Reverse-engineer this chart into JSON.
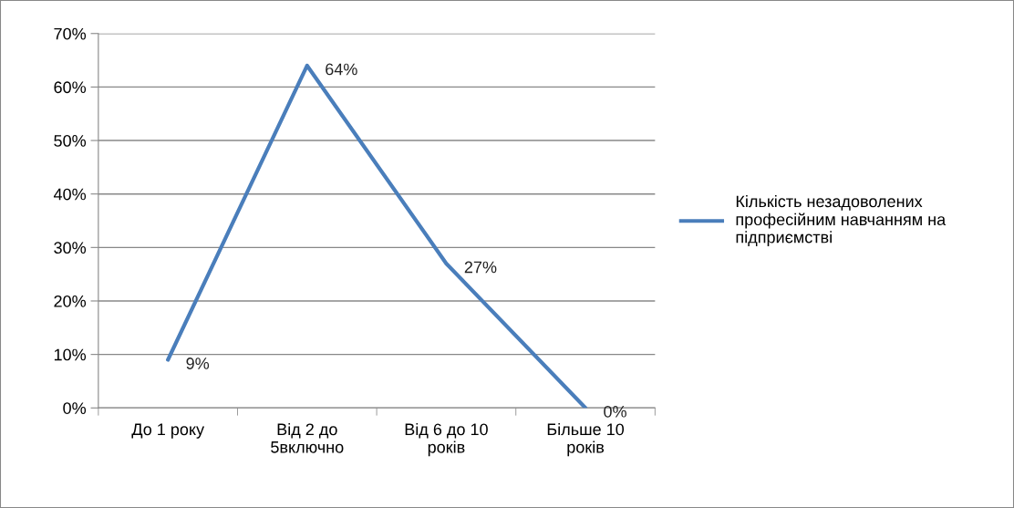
{
  "chart_data": {
    "type": "line",
    "categories": [
      "До 1 року",
      "Від 2 до\n5включно",
      "Від 6 до 10\nроків",
      "Більше 10\nроків"
    ],
    "series": [
      {
        "name": "Кількість незадоволених професійним навчанням на підприємстві",
        "color": "#4a7ebb",
        "values": [
          9,
          64,
          27,
          0
        ],
        "value_labels": [
          "9%",
          "64%",
          "27%",
          "0%"
        ]
      }
    ],
    "ylim": [
      0,
      70
    ],
    "yticks": [
      {
        "value": 0,
        "label": "0%"
      },
      {
        "value": 10,
        "label": "10%"
      },
      {
        "value": 20,
        "label": "20%"
      },
      {
        "value": 30,
        "label": "30%"
      },
      {
        "value": 40,
        "label": "40%"
      },
      {
        "value": 50,
        "label": "50%"
      },
      {
        "value": 60,
        "label": "60%"
      },
      {
        "value": 70,
        "label": "70%"
      }
    ],
    "grid": "y",
    "legend": "right",
    "line_style": "solid"
  }
}
